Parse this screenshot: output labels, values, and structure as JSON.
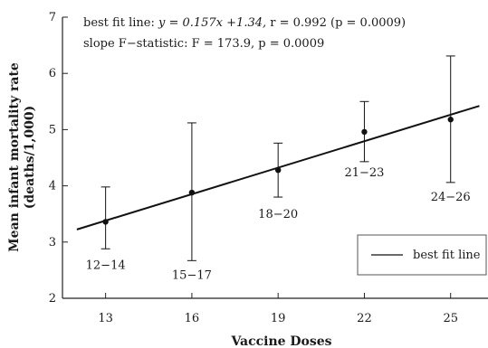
{
  "chart_data": {
    "type": "scatter",
    "xlabel": "Vaccine Doses",
    "ylabel_line1": "Mean infant mortality rate",
    "ylabel_line2": "(deaths/1,000)",
    "xlim": [
      11.5,
      26.3
    ],
    "ylim": [
      2,
      7
    ],
    "xticks": [
      13,
      16,
      19,
      22,
      25
    ],
    "yticks": [
      2,
      3,
      4,
      5,
      6,
      7
    ],
    "grid": false,
    "points": [
      {
        "x": 13,
        "y": 3.36,
        "err_low": 2.88,
        "err_high": 3.98,
        "label": "12−14"
      },
      {
        "x": 16,
        "y": 3.88,
        "err_low": 2.67,
        "err_high": 5.12,
        "label": "15−17"
      },
      {
        "x": 19,
        "y": 4.28,
        "err_low": 3.8,
        "err_high": 4.76,
        "label": "18−20"
      },
      {
        "x": 22,
        "y": 4.96,
        "err_low": 4.43,
        "err_high": 5.5,
        "label": "21−23"
      },
      {
        "x": 25,
        "y": 5.18,
        "err_low": 4.06,
        "err_high": 6.31,
        "label": "24−26"
      }
    ],
    "fit_line": {
      "name": "best fit line",
      "slope": 0.157,
      "intercept": 1.34,
      "x_range": [
        12,
        26
      ]
    },
    "annotations": {
      "line1_prefix": "best fit line:  ",
      "line1_eq": "y = 0.157x +1.34, ",
      "line1_r": "r = 0.992 ",
      "line1_p": "(p = 0.0009)",
      "line2_prefix": "slope F−statistic: ",
      "line2_f": "F = 173.9, ",
      "line2_p": "p = 0.0009"
    },
    "legend": {
      "entry": "best fit line",
      "placement": "bottom-right"
    }
  }
}
